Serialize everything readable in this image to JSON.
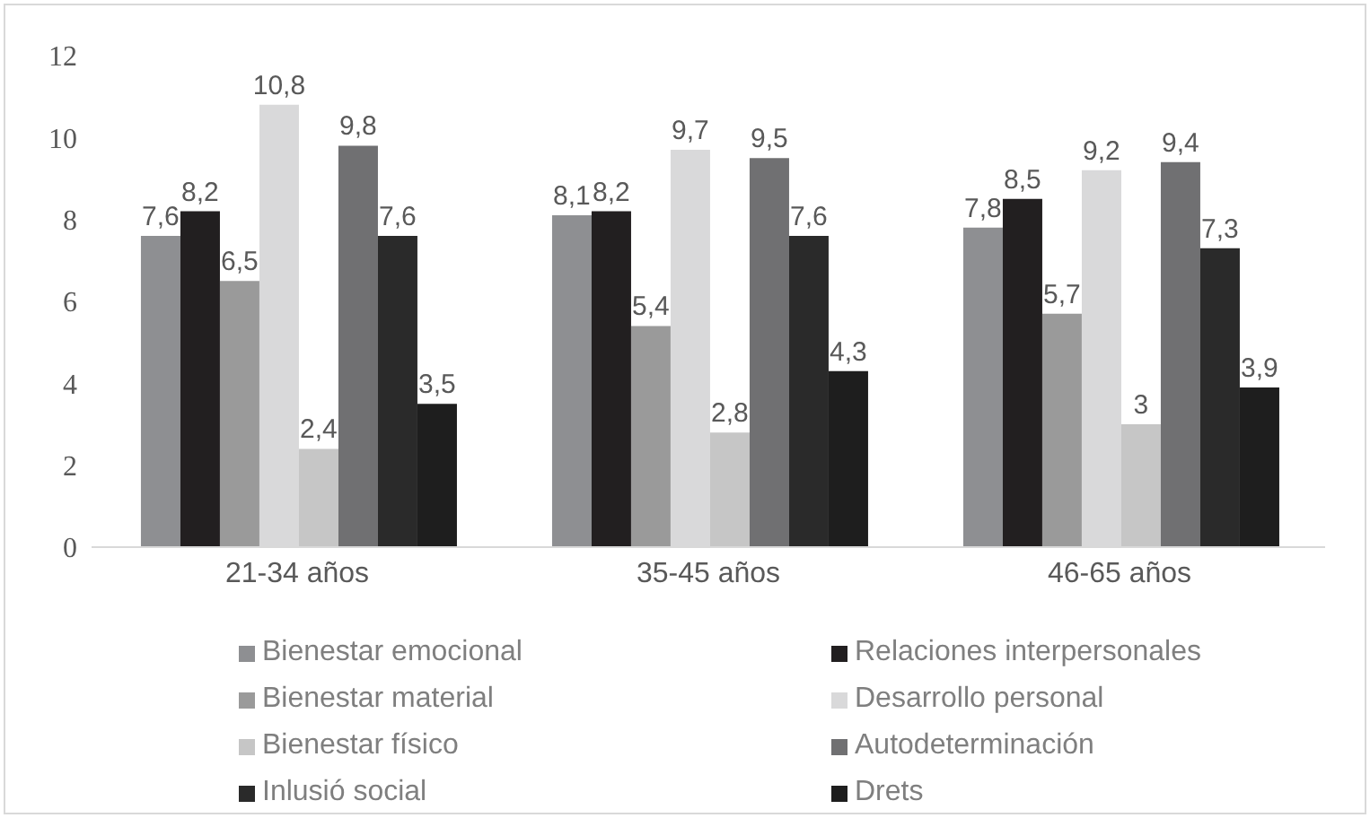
{
  "chart_data": {
    "type": "bar",
    "categories": [
      "21-34 años",
      "35-45 años",
      "46-65 años"
    ],
    "ylim": [
      0,
      12
    ],
    "yticks": [
      0,
      2,
      4,
      6,
      8,
      10,
      12
    ],
    "legend": "bottom",
    "series": [
      {
        "name": "Bienestar emocional",
        "color": "#8e8f92",
        "values": [
          7.6,
          8.1,
          7.8
        ],
        "value_labels": [
          "7,6",
          "8,1",
          "7,8"
        ]
      },
      {
        "name": "Relaciones interpersonales",
        "color": "#221f20",
        "values": [
          8.2,
          8.2,
          8.5
        ],
        "value_labels": [
          "8,2",
          "8,2",
          "8,5"
        ]
      },
      {
        "name": "Bienestar material",
        "color": "#9a9a9a",
        "values": [
          6.5,
          5.4,
          5.7
        ],
        "value_labels": [
          "6,5",
          "5,4",
          "5,7"
        ]
      },
      {
        "name": "Desarrollo personal",
        "color": "#d9d9da",
        "values": [
          10.8,
          9.7,
          9.2
        ],
        "value_labels": [
          "10,8",
          "9,7",
          "9,2"
        ]
      },
      {
        "name": "Bienestar físico",
        "color": "#c6c6c6",
        "values": [
          2.4,
          2.8,
          3
        ],
        "value_labels": [
          "2,4",
          "2,8",
          "3"
        ]
      },
      {
        "name": "Autodeterminación",
        "color": "#707072",
        "values": [
          9.8,
          9.5,
          9.4
        ],
        "value_labels": [
          "9,8",
          "9,5",
          "9,4"
        ]
      },
      {
        "name": "Inlusió social",
        "color": "#2a2a2a",
        "values": [
          7.6,
          7.6,
          7.3
        ],
        "value_labels": [
          "7,6",
          "7,6",
          "7,3"
        ]
      },
      {
        "name": "Drets",
        "color": "#1e1e1e",
        "values": [
          3.5,
          4.3,
          3.9
        ],
        "value_labels": [
          "3,5",
          "4,3",
          "3,9"
        ]
      }
    ]
  }
}
